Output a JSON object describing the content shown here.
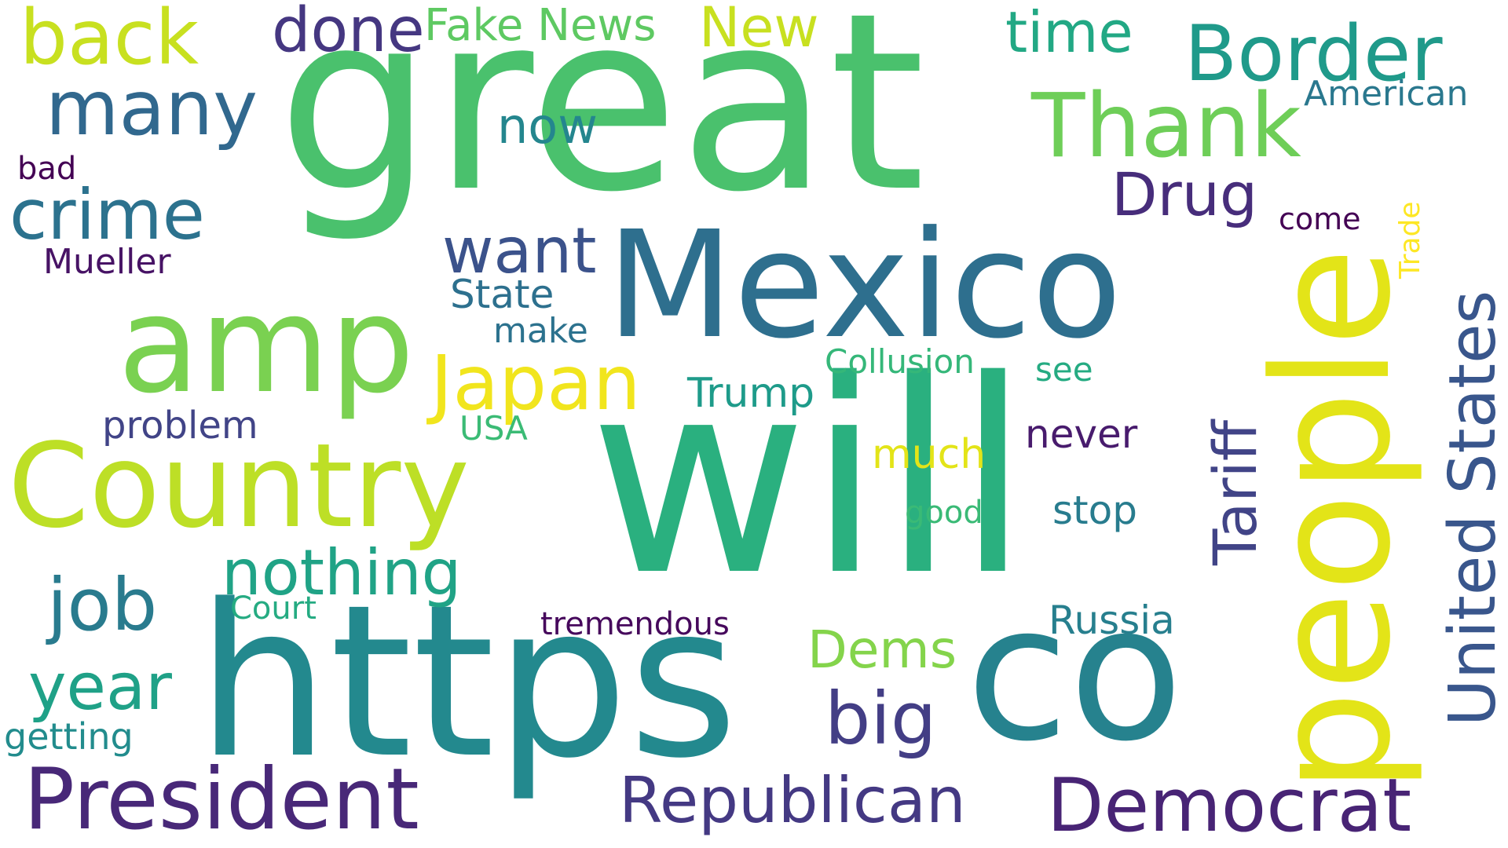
{
  "words": {
    "great": "great",
    "will": "will",
    "https": "https",
    "co": "co",
    "people": "people",
    "mexico": "Mexico",
    "amp": "amp",
    "country": "Country",
    "president": "President",
    "thank": "Thank",
    "border": "Border",
    "united_states": "United States",
    "japan": "Japan",
    "many": "many",
    "crime": "crime",
    "back": "back",
    "democrat": "Democrat",
    "republican": "Republican",
    "nothing": "nothing",
    "job": "job",
    "year": "year",
    "tariff": "Tariff",
    "big": "big",
    "want": "want",
    "drug": "Drug",
    "done": "done",
    "new": "New",
    "time": "time",
    "fake_news": "Fake News",
    "now": "now",
    "dems": "Dems",
    "trump": "Trump",
    "russia": "Russia",
    "state": "State",
    "much": "much",
    "never": "never",
    "stop": "stop",
    "american": "American",
    "problem": "problem",
    "mueller": "Mueller",
    "collusion": "Collusion",
    "see": "see",
    "make": "make",
    "usa": "USA",
    "good": "good",
    "come": "come",
    "court": "Court",
    "tremendous": "tremendous",
    "getting": "getting",
    "bad": "bad",
    "trade": "Trade"
  }
}
